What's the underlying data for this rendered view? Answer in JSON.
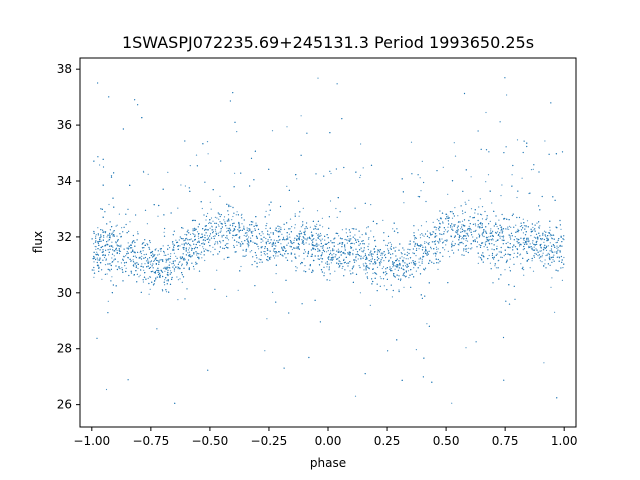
{
  "chart_data": {
    "type": "scatter",
    "title": "1SWASPJ072235.69+245131.3 Period 1993650.25s",
    "xlabel": "phase",
    "ylabel": "flux",
    "xlim": [
      -1.05,
      1.05
    ],
    "ylim": [
      25.2,
      38.4
    ],
    "xticks": [
      -1.0,
      -0.75,
      -0.5,
      -0.25,
      0.0,
      0.25,
      0.5,
      0.75,
      1.0
    ],
    "xtick_labels": [
      "−1.00",
      "−0.75",
      "−0.50",
      "−0.25",
      "0.00",
      "0.25",
      "0.50",
      "0.75",
      "1.00"
    ],
    "yticks": [
      26,
      28,
      30,
      32,
      34,
      36,
      38
    ],
    "ytick_labels": [
      "26",
      "28",
      "30",
      "32",
      "34",
      "36",
      "38"
    ],
    "grid": false,
    "color": "#1f77b4",
    "series": [
      {
        "profile": {
          "phase": [
            -1.0,
            -0.9,
            -0.8,
            -0.7,
            -0.6,
            -0.5,
            -0.4,
            -0.3,
            -0.2,
            -0.1,
            0.0,
            0.1,
            0.2,
            0.3,
            0.4,
            0.5,
            0.6,
            0.7,
            0.8,
            0.9,
            1.0
          ],
          "flux": [
            31.5,
            31.7,
            31.2,
            30.9,
            31.5,
            32.1,
            32.2,
            31.8,
            31.9,
            31.8,
            31.5,
            31.6,
            31.3,
            30.9,
            31.5,
            32.1,
            32.2,
            31.8,
            31.9,
            31.8,
            31.5
          ]
        }
      }
    ]
  }
}
